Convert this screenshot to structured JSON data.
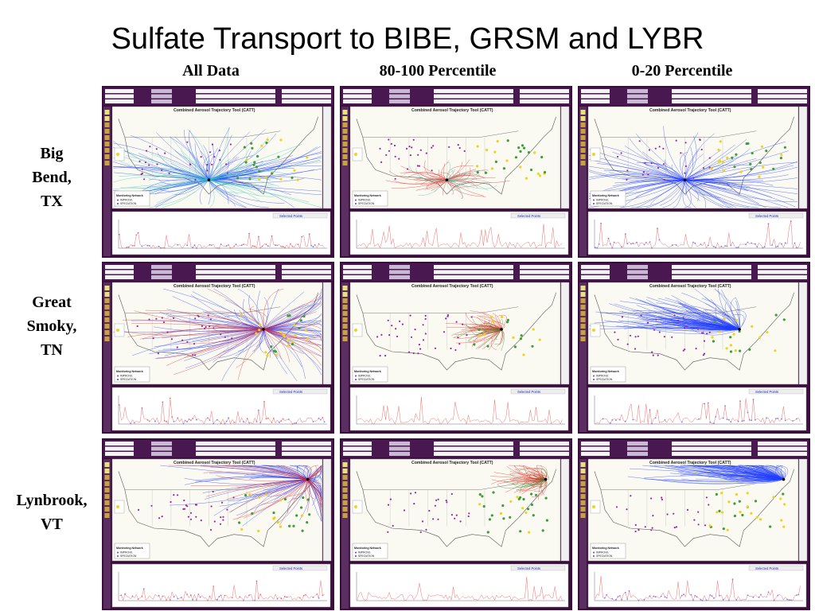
{
  "title": "Sulfate Transport to BIBE, GRSM and LYBR",
  "columns": [
    "All Data",
    "80-100 Percentile",
    "0-20 Percentile"
  ],
  "rows": [
    {
      "label_lines": [
        "Big",
        "Bend,",
        "TX"
      ]
    },
    {
      "label_lines": [
        "Great",
        "Smoky,",
        "TN"
      ]
    },
    {
      "label_lines": [
        "Lynbrook,",
        "VT"
      ]
    }
  ],
  "panel": {
    "tool_title": "Combined Aerosol Trajectory Tool (CATT)",
    "selected_points": "Selected Points",
    "legend_title": "Monitoring Network",
    "legend_items": [
      "IMPROVE",
      "SPECIATION"
    ]
  },
  "colors": {
    "frame": "#3b0d3d",
    "all_data_traj": "#1f3cff",
    "high_traj": "#e8261e",
    "low_traj": "#1f3cff",
    "mid_traj": "#2ec9b8",
    "bars_high": "#f07070",
    "bars_low": "#6f7dff"
  }
}
